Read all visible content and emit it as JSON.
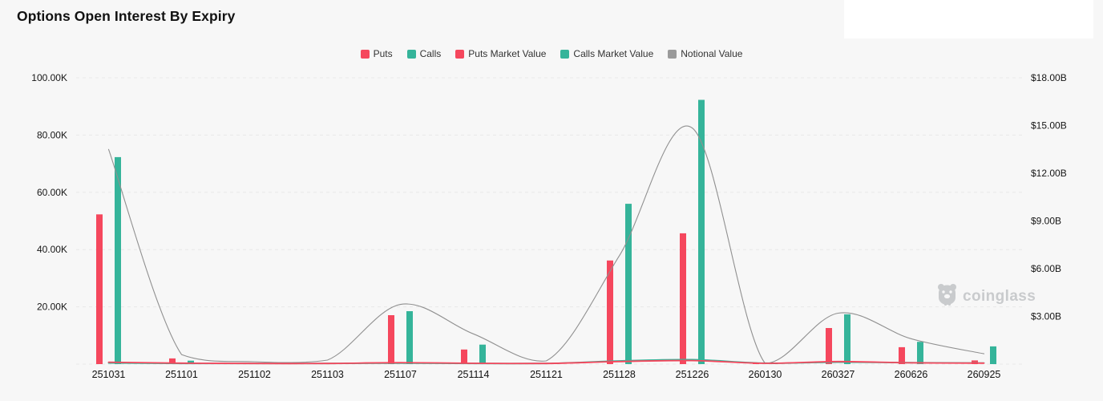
{
  "header": {
    "title": "Options Open Interest By Expiry"
  },
  "watermark": {
    "brand": "coinglass"
  },
  "chart_data": {
    "type": "bar+line combo",
    "title": "Options Open Interest By Expiry",
    "grid": "horizontal dashed",
    "legend_position": "top center",
    "categories": [
      "251031",
      "251101",
      "251102",
      "251103",
      "251107",
      "251114",
      "251121",
      "251128",
      "251226",
      "260130",
      "260327",
      "260626",
      "260925"
    ],
    "left_axis": {
      "unit": "contracts (K)",
      "tick_labels": [
        "20.00K",
        "40.00K",
        "60.00K",
        "80.00K",
        "100.00K"
      ],
      "tick_values": [
        20,
        40,
        60,
        80,
        100
      ],
      "ylim": [
        0,
        102
      ]
    },
    "right_axis": {
      "unit": "USD (B)",
      "tick_labels": [
        "$3.00B",
        "$6.00B",
        "$9.00B",
        "$12.00B",
        "$15.00B",
        "$18.00B"
      ],
      "tick_values": [
        3,
        6,
        9,
        12,
        15,
        18
      ],
      "ylim": [
        0,
        18.3
      ]
    },
    "series": [
      {
        "name": "Puts",
        "type": "bar",
        "axis": "left",
        "color": "#f5475d",
        "values": [
          52.3,
          2.0,
          0.15,
          0.1,
          17.1,
          5.1,
          0.1,
          36.2,
          45.7,
          0.3,
          12.6,
          5.9,
          1.3
        ]
      },
      {
        "name": "Calls",
        "type": "bar",
        "axis": "left",
        "color": "#35b49a",
        "values": [
          72.3,
          1.2,
          0.1,
          0.1,
          18.5,
          6.8,
          0.1,
          56.0,
          92.3,
          0.4,
          17.4,
          7.8,
          6.2
        ]
      },
      {
        "name": "Puts Market Value",
        "type": "line",
        "axis": "right",
        "color": "#f5475d",
        "values": [
          0.12,
          0.06,
          0.04,
          0.04,
          0.09,
          0.05,
          0.04,
          0.16,
          0.22,
          0.05,
          0.16,
          0.08,
          0.06
        ]
      },
      {
        "name": "Calls Market Value",
        "type": "line",
        "axis": "right",
        "color": "#35b49a",
        "values": [
          0.07,
          0.04,
          0.03,
          0.03,
          0.06,
          0.04,
          0.03,
          0.2,
          0.28,
          0.06,
          0.12,
          0.09,
          0.07
        ]
      },
      {
        "name": "Notional Value",
        "type": "line",
        "axis": "right",
        "color": "#909090",
        "values": [
          13.5,
          0.6,
          0.15,
          0.25,
          3.75,
          1.9,
          0.2,
          6.8,
          14.85,
          0.05,
          3.2,
          1.6,
          0.65
        ]
      }
    ]
  }
}
